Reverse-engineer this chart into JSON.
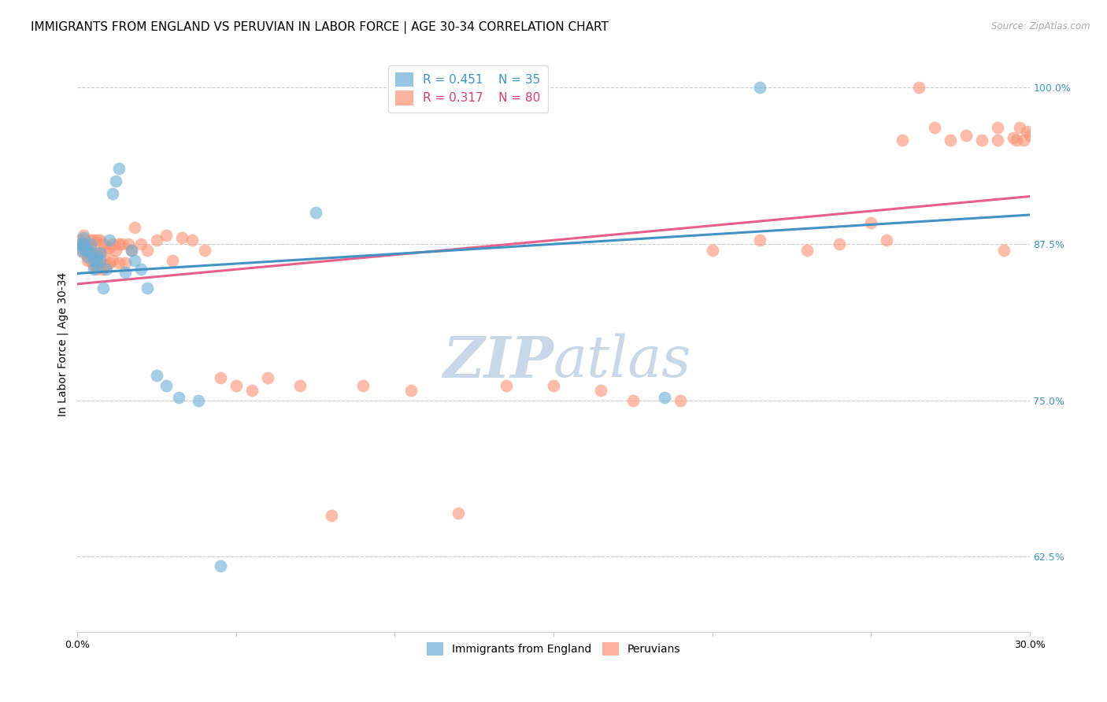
{
  "title": "IMMIGRANTS FROM ENGLAND VS PERUVIAN IN LABOR FORCE | AGE 30-34 CORRELATION CHART",
  "source": "Source: ZipAtlas.com",
  "ylabel": "In Labor Force | Age 30-34",
  "xlim": [
    0.0,
    0.3
  ],
  "ylim": [
    0.565,
    1.025
  ],
  "yticks": [
    0.625,
    0.75,
    0.875,
    1.0
  ],
  "ytick_labels": [
    "62.5%",
    "75.0%",
    "87.5%",
    "100.0%"
  ],
  "xticks": [
    0.0,
    0.05,
    0.1,
    0.15,
    0.2,
    0.25,
    0.3
  ],
  "xtick_labels": [
    "0.0%",
    "",
    "",
    "",
    "",
    "",
    "30.0%"
  ],
  "legend_r_england": "R = 0.451",
  "legend_n_england": "N = 35",
  "legend_r_peruvian": "R = 0.317",
  "legend_n_peruvian": "N = 80",
  "england_color": "#6baed6",
  "peruvian_color": "#fc9272",
  "england_line_color": "#4292c6",
  "peruvian_line_color": "#e8608a",
  "england_x": [
    0.001,
    0.001,
    0.002,
    0.002,
    0.002,
    0.003,
    0.003,
    0.004,
    0.004,
    0.005,
    0.005,
    0.006,
    0.006,
    0.007,
    0.007,
    0.008,
    0.009,
    0.01,
    0.011,
    0.012,
    0.013,
    0.015,
    0.017,
    0.018,
    0.02,
    0.022,
    0.025,
    0.028,
    0.032,
    0.038,
    0.045,
    0.075,
    0.12,
    0.185,
    0.215
  ],
  "england_y": [
    0.875,
    0.87,
    0.875,
    0.88,
    0.872,
    0.87,
    0.865,
    0.875,
    0.868,
    0.862,
    0.855,
    0.858,
    0.865,
    0.862,
    0.868,
    0.84,
    0.855,
    0.878,
    0.915,
    0.925,
    0.935,
    0.852,
    0.87,
    0.862,
    0.855,
    0.84,
    0.77,
    0.762,
    0.752,
    0.75,
    0.618,
    0.9,
    1.0,
    0.752,
    1.0
  ],
  "peruvian_x": [
    0.001,
    0.001,
    0.002,
    0.002,
    0.002,
    0.003,
    0.003,
    0.003,
    0.004,
    0.004,
    0.004,
    0.005,
    0.005,
    0.005,
    0.006,
    0.006,
    0.006,
    0.007,
    0.007,
    0.007,
    0.008,
    0.008,
    0.008,
    0.009,
    0.009,
    0.01,
    0.01,
    0.011,
    0.011,
    0.012,
    0.013,
    0.013,
    0.014,
    0.015,
    0.016,
    0.017,
    0.018,
    0.02,
    0.022,
    0.025,
    0.028,
    0.03,
    0.033,
    0.036,
    0.04,
    0.045,
    0.05,
    0.055,
    0.06,
    0.07,
    0.08,
    0.09,
    0.105,
    0.12,
    0.135,
    0.15,
    0.165,
    0.175,
    0.19,
    0.2,
    0.215,
    0.23,
    0.24,
    0.25,
    0.255,
    0.26,
    0.265,
    0.27,
    0.275,
    0.28,
    0.285,
    0.29,
    0.29,
    0.292,
    0.295,
    0.296,
    0.297,
    0.298,
    0.299,
    0.3
  ],
  "peruvian_y": [
    0.878,
    0.872,
    0.882,
    0.875,
    0.868,
    0.875,
    0.868,
    0.862,
    0.878,
    0.872,
    0.862,
    0.878,
    0.868,
    0.858,
    0.878,
    0.868,
    0.855,
    0.878,
    0.868,
    0.858,
    0.875,
    0.862,
    0.855,
    0.87,
    0.858,
    0.872,
    0.86,
    0.875,
    0.862,
    0.87,
    0.875,
    0.86,
    0.875,
    0.86,
    0.875,
    0.87,
    0.888,
    0.875,
    0.87,
    0.878,
    0.882,
    0.862,
    0.88,
    0.878,
    0.87,
    0.768,
    0.762,
    0.758,
    0.768,
    0.762,
    0.658,
    0.762,
    0.758,
    0.66,
    0.762,
    0.762,
    0.758,
    0.75,
    0.75,
    0.87,
    0.878,
    0.87,
    0.875,
    0.892,
    0.878,
    0.958,
    1.0,
    0.968,
    0.958,
    0.962,
    0.958,
    0.958,
    0.968,
    0.87,
    0.96,
    0.958,
    0.968,
    0.958,
    0.965,
    0.962
  ],
  "background_color": "#ffffff",
  "grid_color": "#cccccc",
  "title_fontsize": 11,
  "axis_label_fontsize": 10,
  "tick_fontsize": 9,
  "watermark_zip": "ZIP",
  "watermark_atlas": "atlas",
  "watermark_color_zip": "#c8d8e8",
  "watermark_color_atlas": "#c8d8e8",
  "axis_label_color": "#4292c6",
  "legend_text_color_england": "#4292c6",
  "legend_text_color_peruvian": "#d63f6e"
}
